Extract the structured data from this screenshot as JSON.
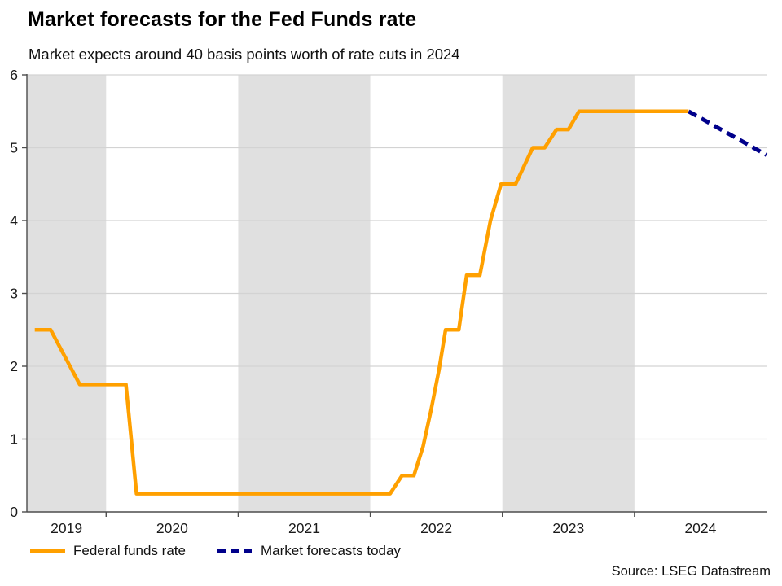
{
  "header": {
    "title": "Market forecasts for the Fed Funds rate",
    "subtitle": "Market expects around 40 basis points worth of rate cuts in 2024"
  },
  "footer": {
    "source": "Source: LSEG Datastream"
  },
  "legend": {
    "items": [
      {
        "label": "Federal funds rate",
        "color": "#FFA000",
        "dash": false
      },
      {
        "label": "Market forecasts today",
        "color": "#00008B",
        "dash": true
      }
    ]
  },
  "colors": {
    "band": "#E0E0E0",
    "gridline": "#D3D3D3",
    "axis": "#4D4D4D",
    "tick_text": "#1a1a1a"
  },
  "chart_data": {
    "type": "line",
    "title": "Market forecasts for the Fed Funds rate",
    "subtitle": "Market expects around 40 basis points worth of rate cuts in 2024",
    "xlabel": "",
    "ylabel": "",
    "x_range": [
      2019.4,
      2025.0
    ],
    "y_range": [
      0,
      6
    ],
    "grid": "horizontal",
    "legend_position": "bottom-left",
    "y_ticks": [
      0,
      1,
      2,
      3,
      4,
      5,
      6
    ],
    "x_boundary_ticks": [
      2020,
      2021,
      2022,
      2023,
      2024
    ],
    "x_year_labels": [
      {
        "label": "2019",
        "x": 2019.7
      },
      {
        "label": "2020",
        "x": 2020.5
      },
      {
        "label": "2021",
        "x": 2021.5
      },
      {
        "label": "2022",
        "x": 2022.5
      },
      {
        "label": "2023",
        "x": 2023.5
      },
      {
        "label": "2024",
        "x": 2024.5
      }
    ],
    "shaded_bands": [
      [
        2019.4,
        2020.0
      ],
      [
        2021.0,
        2022.0
      ],
      [
        2023.0,
        2024.0
      ]
    ],
    "series": [
      {
        "name": "Federal funds rate",
        "color": "#FFA000",
        "dash": false,
        "points": [
          [
            2019.46,
            2.5
          ],
          [
            2019.58,
            2.5
          ],
          [
            2019.8,
            1.75
          ],
          [
            2020.15,
            1.75
          ],
          [
            2020.23,
            0.25
          ],
          [
            2022.15,
            0.25
          ],
          [
            2022.24,
            0.5
          ],
          [
            2022.33,
            0.5
          ],
          [
            2022.4,
            0.9
          ],
          [
            2022.46,
            1.4
          ],
          [
            2022.52,
            1.95
          ],
          [
            2022.57,
            2.5
          ],
          [
            2022.67,
            2.5
          ],
          [
            2022.73,
            3.25
          ],
          [
            2022.83,
            3.25
          ],
          [
            2022.91,
            4.0
          ],
          [
            2022.99,
            4.5
          ],
          [
            2023.1,
            4.5
          ],
          [
            2023.23,
            5.0
          ],
          [
            2023.32,
            5.0
          ],
          [
            2023.41,
            5.25
          ],
          [
            2023.5,
            5.25
          ],
          [
            2023.58,
            5.5
          ],
          [
            2024.41,
            5.5
          ]
        ]
      },
      {
        "name": "Market forecasts today",
        "color": "#00008B",
        "dash": true,
        "points": [
          [
            2024.41,
            5.5
          ],
          [
            2025.0,
            4.9
          ]
        ]
      }
    ]
  }
}
